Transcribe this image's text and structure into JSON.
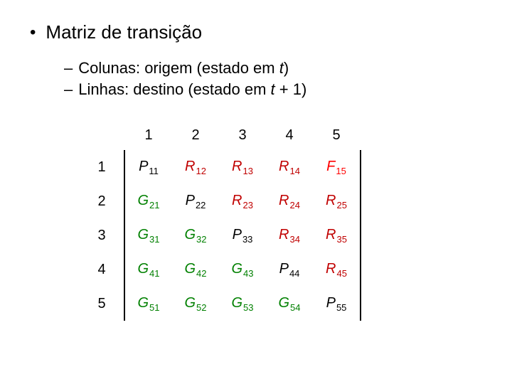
{
  "heading": "Matriz de transição",
  "sub1_prefix": "Colunas: origem (estado em ",
  "sub1_var": "t",
  "sub1_suffix": ")",
  "sub2_prefix": "Linhas: destino (estado em ",
  "sub2_var": "t",
  "sub2_mid": " + 1)",
  "matrix": {
    "col_headers": [
      "1",
      "2",
      "3",
      "4",
      "5"
    ],
    "row_headers": [
      "1",
      "2",
      "3",
      "4",
      "5"
    ],
    "bold_col_headers": [
      true,
      false,
      false,
      false,
      true
    ],
    "bold_row_headers": [
      false,
      false,
      false,
      true,
      false
    ],
    "cells": [
      [
        {
          "l": "P",
          "s": "11"
        },
        {
          "l": "R",
          "s": "12"
        },
        {
          "l": "R",
          "s": "13"
        },
        {
          "l": "R",
          "s": "14"
        },
        {
          "l": "F",
          "s": "15"
        }
      ],
      [
        {
          "l": "G",
          "s": "21"
        },
        {
          "l": "P",
          "s": "22"
        },
        {
          "l": "R",
          "s": "23"
        },
        {
          "l": "R",
          "s": "24"
        },
        {
          "l": "R",
          "s": "25"
        }
      ],
      [
        {
          "l": "G",
          "s": "31"
        },
        {
          "l": "G",
          "s": "32"
        },
        {
          "l": "P",
          "s": "33"
        },
        {
          "l": "R",
          "s": "34"
        },
        {
          "l": "R",
          "s": "35"
        }
      ],
      [
        {
          "l": "G",
          "s": "41"
        },
        {
          "l": "G",
          "s": "42"
        },
        {
          "l": "G",
          "s": "43"
        },
        {
          "l": "P",
          "s": "44"
        },
        {
          "l": "R",
          "s": "45"
        }
      ],
      [
        {
          "l": "G",
          "s": "51"
        },
        {
          "l": "G",
          "s": "52"
        },
        {
          "l": "G",
          "s": "53"
        },
        {
          "l": "G",
          "s": "54"
        },
        {
          "l": "P",
          "s": "55"
        }
      ]
    ],
    "colors": {
      "P": "#000000",
      "R": "#c00000",
      "G": "#008000",
      "F": "#ff0000"
    }
  }
}
